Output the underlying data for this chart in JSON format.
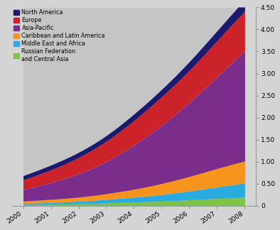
{
  "years": [
    2000,
    2001,
    2002,
    2003,
    2004,
    2005,
    2006,
    2007,
    2008
  ],
  "regions": [
    "Russian Federation\nand Central Asia",
    "Middle East and Africa",
    "Caribbean and Latin America",
    "Asia-Pacific",
    "Europe",
    "North America"
  ],
  "colors": [
    "#7dc242",
    "#29abe2",
    "#f7941d",
    "#7b2d8b",
    "#cc2229",
    "#1a1a6e"
  ],
  "data": {
    "Russian Federation\nand Central Asia": [
      0.02,
      0.03,
      0.04,
      0.06,
      0.08,
      0.1,
      0.13,
      0.16,
      0.19
    ],
    "Middle East and Africa": [
      0.03,
      0.04,
      0.06,
      0.08,
      0.11,
      0.15,
      0.2,
      0.26,
      0.32
    ],
    "Caribbean and Latin America": [
      0.05,
      0.07,
      0.09,
      0.13,
      0.18,
      0.25,
      0.33,
      0.42,
      0.5
    ],
    "Asia-Pacific": [
      0.26,
      0.38,
      0.53,
      0.73,
      1.0,
      1.32,
      1.68,
      2.08,
      2.5
    ],
    "Europe": [
      0.22,
      0.29,
      0.37,
      0.46,
      0.56,
      0.65,
      0.73,
      0.82,
      0.9
    ],
    "North America": [
      0.1,
      0.11,
      0.12,
      0.13,
      0.15,
      0.17,
      0.2,
      0.23,
      0.26
    ]
  },
  "ylim": [
    0,
    4.5
  ],
  "yticks": [
    0,
    0.5,
    1.0,
    1.5,
    2.0,
    2.5,
    3.0,
    3.5,
    4.0,
    4.5
  ],
  "background_color": "#d4d4d4",
  "legend_items": [
    [
      "North America",
      "#1a1a6e"
    ],
    [
      "Europe",
      "#cc2229"
    ],
    [
      "Asia-Pacific",
      "#7b2d8b"
    ],
    [
      "Caribbean and Latin America",
      "#f7941d"
    ],
    [
      "Middle East and Africa",
      "#29abe2"
    ],
    [
      "Russian Federation\nand Central Asia",
      "#7dc242"
    ]
  ]
}
